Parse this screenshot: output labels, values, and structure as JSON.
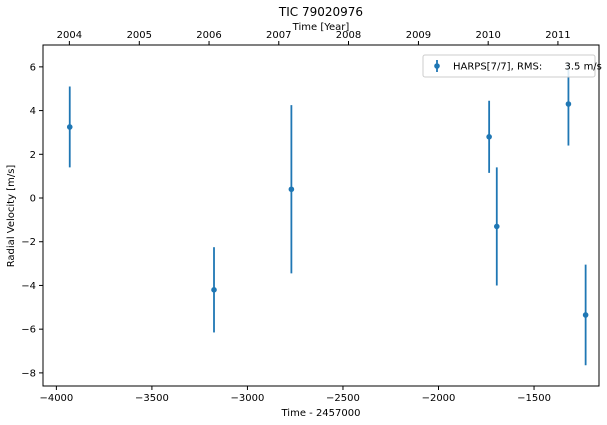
{
  "chart_data": {
    "type": "scatter",
    "title": "TIC 79020976",
    "xlabel": "Time - 2457000",
    "ylabel": "Radial Velocity [m/s]",
    "top_xlabel": "Time [Year]",
    "xlim": [
      -4070,
      -1160
    ],
    "ylim": [
      -8.6,
      7.0
    ],
    "x_ticks": [
      -4000,
      -3500,
      -3000,
      -2500,
      -2000,
      -1500
    ],
    "x_tick_labels": [
      "−4000",
      "−3500",
      "−3000",
      "−2500",
      "−2000",
      "−1500"
    ],
    "y_ticks": [
      -8,
      -6,
      -4,
      -2,
      0,
      2,
      4,
      6
    ],
    "y_tick_labels": [
      "−8",
      "−6",
      "−4",
      "−2",
      "0",
      "2",
      "4",
      "6"
    ],
    "top_ticks": [
      {
        "label": "2004",
        "x": -3932
      },
      {
        "label": "2005",
        "x": -3566
      },
      {
        "label": "2006",
        "x": -3201
      },
      {
        "label": "2007",
        "x": -2836
      },
      {
        "label": "2008",
        "x": -2471
      },
      {
        "label": "2009",
        "x": -2105
      },
      {
        "label": "2010",
        "x": -1740
      },
      {
        "label": "2011",
        "x": -1375
      }
    ],
    "grid": false,
    "legend_position": "top-right",
    "series": [
      {
        "name": "HARPS[7/7], RMS:       3.5 m/s",
        "color": "#1f77b4",
        "x": [
          -3930,
          -3175,
          -2770,
          -1735,
          -1695,
          -1320,
          -1230
        ],
        "y": [
          3.25,
          -4.2,
          0.4,
          2.8,
          -1.3,
          4.3,
          -5.35
        ],
        "yerr": [
          1.85,
          1.95,
          3.85,
          1.65,
          2.7,
          1.9,
          2.3
        ]
      }
    ]
  }
}
